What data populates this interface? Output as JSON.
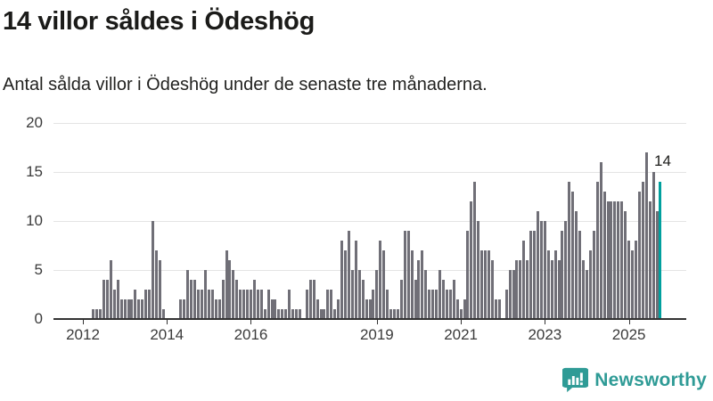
{
  "header": {
    "title": "14 villor såldes i Ödeshög",
    "subtitle": "Antal sålda villor i Ödeshög under de senaste tre månaderna."
  },
  "chart_data": {
    "type": "bar",
    "title": "14 villor såldes i Ödeshög",
    "subtitle": "Antal sålda villor i Ödeshög under de senaste tre månaderna.",
    "ylabel": "",
    "xlabel": "",
    "ylim": [
      0,
      20
    ],
    "yticks": [
      0,
      5,
      10,
      15,
      20
    ],
    "grid": true,
    "start_month": "2012-01",
    "values": [
      0,
      0,
      0,
      1,
      1,
      1,
      4,
      4,
      6,
      3,
      4,
      2,
      2,
      2,
      2,
      3,
      2,
      2,
      3,
      3,
      10,
      7,
      6,
      1,
      0,
      0,
      0,
      0,
      2,
      2,
      5,
      4,
      4,
      3,
      3,
      5,
      3,
      3,
      2,
      2,
      4,
      7,
      6,
      5,
      4,
      3,
      3,
      3,
      3,
      4,
      3,
      3,
      1,
      3,
      2,
      2,
      1,
      1,
      1,
      3,
      1,
      1,
      1,
      0,
      3,
      4,
      4,
      2,
      1,
      1,
      3,
      3,
      1,
      2,
      8,
      7,
      9,
      5,
      8,
      5,
      4,
      2,
      2,
      3,
      5,
      8,
      7,
      3,
      1,
      1,
      1,
      4,
      9,
      9,
      7,
      4,
      6,
      7,
      5,
      3,
      3,
      3,
      5,
      4,
      3,
      3,
      4,
      2,
      1,
      2,
      9,
      12,
      14,
      10,
      7,
      7,
      7,
      6,
      2,
      2,
      0,
      3,
      5,
      5,
      6,
      6,
      8,
      6,
      9,
      9,
      11,
      10,
      10,
      7,
      6,
      7,
      6,
      9,
      10,
      14,
      13,
      11,
      9,
      6,
      5,
      7,
      9,
      14,
      16,
      13,
      12,
      12,
      12,
      12,
      12,
      11,
      8,
      7,
      8,
      13,
      14,
      17,
      12,
      15,
      11,
      14
    ],
    "xticks": [
      {
        "month_index": 0,
        "label": "2012"
      },
      {
        "month_index": 24,
        "label": "2014"
      },
      {
        "month_index": 48,
        "label": "2016"
      },
      {
        "month_index": 84,
        "label": "2019"
      },
      {
        "month_index": 108,
        "label": "2021"
      },
      {
        "month_index": 132,
        "label": "2023"
      },
      {
        "month_index": 156,
        "label": "2025"
      }
    ],
    "annotation": {
      "text": "14",
      "value": 14
    },
    "highlight_last": true,
    "legend_position": "none",
    "colors": {
      "bar": "#706f77",
      "highlight": "#00a09e",
      "gridline": "#e4e4e4",
      "axis": "#333333"
    }
  },
  "footer": {
    "brand": "Newsworthy",
    "brand_color": "#2f9b96"
  }
}
